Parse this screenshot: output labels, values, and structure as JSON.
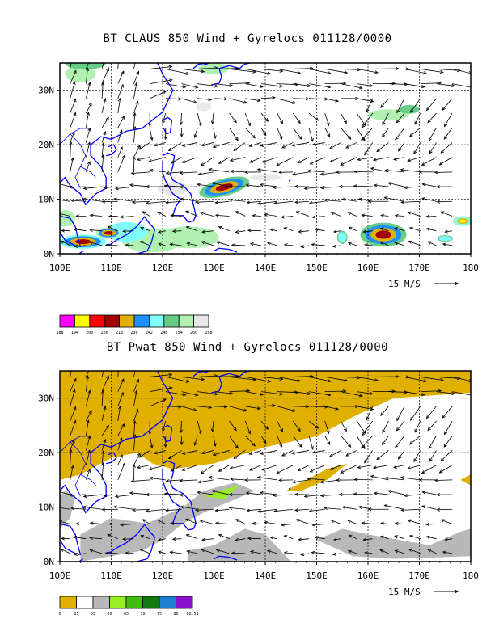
{
  "chart_data": [
    {
      "type": "map",
      "title": "BT CLAUS 850 Wind + Gyrelocs 011128/0000",
      "x_ticks": [
        "100E",
        "110E",
        "120E",
        "130E",
        "140E",
        "150E",
        "160E",
        "170E",
        "180"
      ],
      "y_ticks": [
        "0N",
        "10N",
        "20N",
        "30N"
      ],
      "xlim": [
        100,
        180
      ],
      "ylim": [
        0,
        35
      ],
      "grid": true,
      "vector_reference": "15 M/S",
      "colorbar": {
        "labels": [
          "188",
          "194",
          "200",
          "206",
          "218",
          "230",
          "242",
          "248",
          "254",
          "260",
          "268"
        ],
        "colors": [
          "#ff00ff",
          "#ffff00",
          "#ff0000",
          "#a00000",
          "#e0b000",
          "#1e90ff",
          "#7fffff",
          "#66cc88",
          "#b0f0b0",
          "#e8e8e8"
        ]
      },
      "features": [
        {
          "name": "cloud-cluster-philippine-sea",
          "lon": 132,
          "lat": 12
        },
        {
          "name": "cloud-cluster-south-china-sea",
          "lon": 105,
          "lat": 2
        },
        {
          "name": "cloud-cluster-central-pacific",
          "lon": 163,
          "lat": 3.5
        },
        {
          "name": "cloud-cluster-east",
          "lon": 178,
          "lat": 6
        }
      ]
    },
    {
      "type": "map",
      "title": "BT Pwat 850 Wind + Gyrelocs 011128/0000",
      "x_ticks": [
        "100E",
        "110E",
        "120E",
        "130E",
        "140E",
        "150E",
        "160E",
        "170E",
        "180"
      ],
      "y_ticks": [
        "0N",
        "10N",
        "20N",
        "30N"
      ],
      "xlim": [
        100,
        180
      ],
      "ylim": [
        0,
        35
      ],
      "grid": true,
      "vector_reference": "15 M/S",
      "colorbar": {
        "labels": [
          "0",
          "25",
          "55",
          "60",
          "65",
          "70",
          "75",
          "80",
          "82.58"
        ],
        "colors": [
          "#e0b000",
          "#ffffff",
          "#b8b8b8",
          "#99ee22",
          "#44bb11",
          "#117711",
          "#1e7fd0",
          "#8a10cc"
        ]
      }
    }
  ]
}
